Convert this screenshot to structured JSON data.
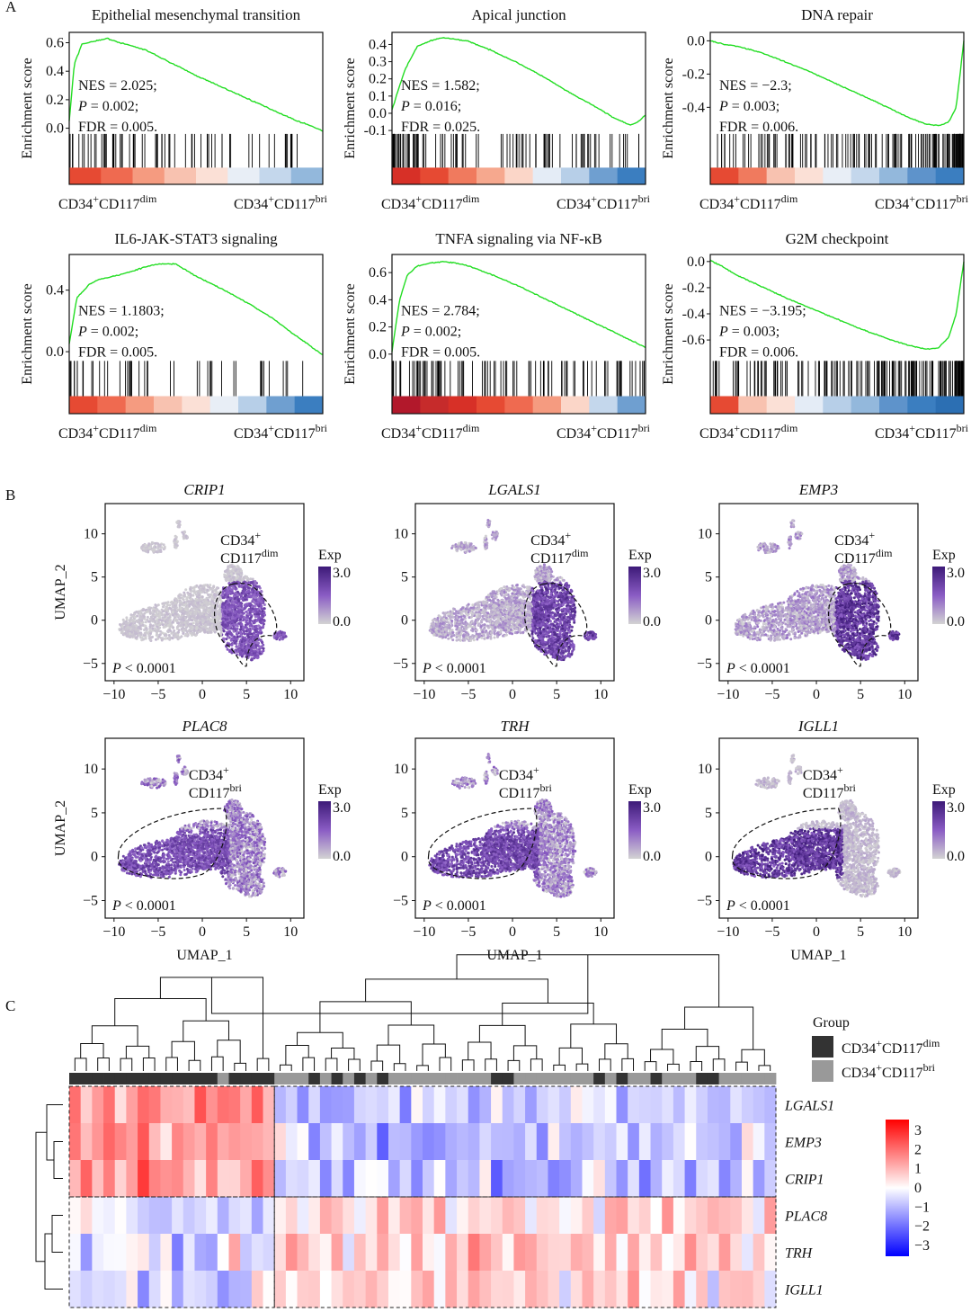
{
  "panel_labels": [
    "A",
    "B",
    "C"
  ],
  "chart_data": [
    {
      "panel": "A",
      "type": "line",
      "ylabel": "Enrichment score",
      "plots": [
        {
          "title": "Epithelial mesenchymal transition",
          "yticks": [
            "0.0",
            "0.2",
            "0.4",
            "0.6"
          ],
          "ylim": [
            -0.04,
            0.66
          ],
          "curve": [
            [
              0,
              0.05
            ],
            [
              0.02,
              0.45
            ],
            [
              0.05,
              0.59
            ],
            [
              0.1,
              0.61
            ],
            [
              0.15,
              0.63
            ],
            [
              0.2,
              0.6
            ],
            [
              0.3,
              0.55
            ],
            [
              0.4,
              0.46
            ],
            [
              0.5,
              0.37
            ],
            [
              0.6,
              0.29
            ],
            [
              0.7,
              0.21
            ],
            [
              0.8,
              0.13
            ],
            [
              0.9,
              0.05
            ],
            [
              0.95,
              0.02
            ],
            [
              1.0,
              -0.02
            ]
          ],
          "stats": {
            "nes": "NES = 2.025;",
            "p": "= 0.002;",
            "fdr": "FDR = 0.005."
          },
          "ranking_colors": [
            "#e64a33",
            "#ef6a50",
            "#f59b80",
            "#f8c2b0",
            "#fbe0d6",
            "#e8eef6",
            "#c4d7ec",
            "#93b8dc"
          ],
          "hits": 70
        },
        {
          "title": "Apical junction",
          "yticks": [
            "-0.1",
            "0.0",
            "0.1",
            "0.2",
            "0.3",
            "0.4"
          ],
          "ylim": [
            -0.12,
            0.46
          ],
          "curve": [
            [
              0,
              0.02
            ],
            [
              0.05,
              0.25
            ],
            [
              0.1,
              0.39
            ],
            [
              0.15,
              0.42
            ],
            [
              0.2,
              0.44
            ],
            [
              0.25,
              0.43
            ],
            [
              0.3,
              0.42
            ],
            [
              0.4,
              0.36
            ],
            [
              0.5,
              0.29
            ],
            [
              0.6,
              0.21
            ],
            [
              0.7,
              0.12
            ],
            [
              0.8,
              0.04
            ],
            [
              0.88,
              -0.03
            ],
            [
              0.94,
              -0.07
            ],
            [
              0.97,
              -0.05
            ],
            [
              1.0,
              -0.01
            ]
          ],
          "stats": {
            "nes": "NES = 1.582;",
            "p": "= 0.016;",
            "fdr": "FDR = 0.025."
          },
          "ranking_colors": [
            "#d73027",
            "#e64a33",
            "#f07a5e",
            "#f6a88e",
            "#fbd6c8",
            "#e4ecf6",
            "#b7cfe8",
            "#6f9fd0",
            "#3b7ec0"
          ],
          "hits": 90
        },
        {
          "title": "DNA repair",
          "yticks": [
            "0.0",
            "-0.2",
            "-0.4"
          ],
          "ylim": [
            -0.56,
            0.04
          ],
          "curve": [
            [
              0,
              0.0
            ],
            [
              0.05,
              -0.02
            ],
            [
              0.1,
              -0.03
            ],
            [
              0.2,
              -0.07
            ],
            [
              0.3,
              -0.13
            ],
            [
              0.4,
              -0.19
            ],
            [
              0.5,
              -0.26
            ],
            [
              0.6,
              -0.33
            ],
            [
              0.7,
              -0.4
            ],
            [
              0.78,
              -0.46
            ],
            [
              0.85,
              -0.5
            ],
            [
              0.9,
              -0.51
            ],
            [
              0.94,
              -0.49
            ],
            [
              0.97,
              -0.4
            ],
            [
              1.0,
              0.0
            ]
          ],
          "stats": {
            "nes": "NES = −2.3;",
            "p": "= 0.003;",
            "fdr": "FDR = 0.006."
          },
          "ranking_colors": [
            "#e64a33",
            "#f07a5e",
            "#f8c2b0",
            "#fbe0d6",
            "#e8eef6",
            "#c4d7ec",
            "#93b8dc",
            "#5e93cb",
            "#3b7ec0"
          ],
          "hits": 150
        },
        {
          "title": "IL6-JAK-STAT3 signaling",
          "yticks": [
            "0.0",
            "0.4"
          ],
          "ylim": [
            -0.06,
            0.62
          ],
          "curve": [
            [
              0,
              0.05
            ],
            [
              0.03,
              0.35
            ],
            [
              0.08,
              0.44
            ],
            [
              0.12,
              0.47
            ],
            [
              0.2,
              0.5
            ],
            [
              0.3,
              0.55
            ],
            [
              0.35,
              0.57
            ],
            [
              0.42,
              0.57
            ],
            [
              0.5,
              0.49
            ],
            [
              0.6,
              0.41
            ],
            [
              0.7,
              0.32
            ],
            [
              0.8,
              0.22
            ],
            [
              0.88,
              0.12
            ],
            [
              0.94,
              0.05
            ],
            [
              1.0,
              -0.02
            ]
          ],
          "stats": {
            "nes": "NES = 1.1803;",
            "p": "= 0.002;",
            "fdr": "FDR = 0.005."
          },
          "ranking_colors": [
            "#e64a33",
            "#ef6a50",
            "#f59b80",
            "#f8c2b0",
            "#fbe0d6",
            "#e8eef6",
            "#b7cfe8",
            "#6f9fd0",
            "#3b7ec0"
          ],
          "hits": 45
        },
        {
          "title": "TNFA signaling via NF-κB",
          "yticks": [
            "0.0",
            "0.2",
            "0.4",
            "0.6"
          ],
          "ylim": [
            -0.05,
            0.72
          ],
          "curve": [
            [
              0,
              0.02
            ],
            [
              0.03,
              0.4
            ],
            [
              0.06,
              0.58
            ],
            [
              0.1,
              0.65
            ],
            [
              0.15,
              0.67
            ],
            [
              0.2,
              0.68
            ],
            [
              0.25,
              0.67
            ],
            [
              0.3,
              0.65
            ],
            [
              0.4,
              0.58
            ],
            [
              0.5,
              0.5
            ],
            [
              0.6,
              0.41
            ],
            [
              0.7,
              0.32
            ],
            [
              0.8,
              0.23
            ],
            [
              0.9,
              0.14
            ],
            [
              1.0,
              0.05
            ]
          ],
          "stats": {
            "nes": "NES = 2.784;",
            "p": "= 0.002;",
            "fdr": "FDR = 0.005."
          },
          "ranking_colors": [
            "#b2182b",
            "#c62b2b",
            "#d73027",
            "#e64a33",
            "#ef6a50",
            "#f59b80",
            "#fbd6c8",
            "#c4d7ec",
            "#6f9fd0"
          ],
          "hits": 95
        },
        {
          "title": "G2M checkpoint",
          "yticks": [
            "0.0",
            "-0.2",
            "-0.4",
            "-0.6"
          ],
          "ylim": [
            -0.76,
            0.04
          ],
          "curve": [
            [
              0,
              0.01
            ],
            [
              0.05,
              -0.04
            ],
            [
              0.1,
              -0.1
            ],
            [
              0.2,
              -0.19
            ],
            [
              0.3,
              -0.28
            ],
            [
              0.4,
              -0.36
            ],
            [
              0.5,
              -0.44
            ],
            [
              0.6,
              -0.52
            ],
            [
              0.7,
              -0.59
            ],
            [
              0.78,
              -0.64
            ],
            [
              0.85,
              -0.67
            ],
            [
              0.9,
              -0.66
            ],
            [
              0.94,
              -0.58
            ],
            [
              0.97,
              -0.4
            ],
            [
              1.0,
              0.0
            ]
          ],
          "stats": {
            "nes": "NES = −3.195;",
            "p": "= 0.003;",
            "fdr": "FDR = 0.006."
          },
          "ranking_colors": [
            "#e64a33",
            "#f8c2b0",
            "#fbe0d6",
            "#e4ecf6",
            "#b7cfe8",
            "#93b8dc",
            "#5e93cb",
            "#3b7ec0",
            "#2c6fb3"
          ],
          "hits": 170
        }
      ],
      "x_left": {
        "base": "CD34",
        "sup1": "+",
        "mid": "CD117",
        "sup2": "dim"
      },
      "x_right": {
        "base": "CD34",
        "sup1": "+",
        "mid": "CD117",
        "sup2": "bri"
      }
    },
    {
      "panel": "B",
      "type": "scatter",
      "xlabel": "UMAP_1",
      "ylabel": "UMAP_2",
      "xticks": [
        "−10",
        "−5",
        "0",
        "5",
        "10"
      ],
      "yticks": [
        "−5",
        "0",
        "5",
        "10"
      ],
      "xlim": [
        -11,
        11.5
      ],
      "ylim": [
        -7,
        13.5
      ],
      "legend_title": "Exp",
      "legend_ticks": [
        "3.0",
        "0.0"
      ],
      "pvalue": "< 0.0001",
      "plots": [
        {
          "gene": "CRIP1",
          "group": "dim",
          "intensity": 0.75,
          "bg": 0.08
        },
        {
          "gene": "LGALS1",
          "group": "dim",
          "intensity": 0.9,
          "bg": 0.25
        },
        {
          "gene": "EMP3",
          "group": "dim",
          "intensity": 1.0,
          "bg": 0.3
        },
        {
          "gene": "PLAC8",
          "group": "bri",
          "intensity": 0.8,
          "bg": 0.45
        },
        {
          "gene": "TRH",
          "group": "bri",
          "intensity": 0.85,
          "bg": 0.4
        },
        {
          "gene": "IGLL1",
          "group": "bri",
          "intensity": 1.0,
          "bg": 0.15
        }
      ],
      "label_dim": {
        "l1": "CD34",
        "s1": "+",
        "l2": "CD117",
        "s2": "dim"
      },
      "label_bri": {
        "l1": "CD34",
        "s1": "+",
        "l2": "CD117",
        "s2": "bri"
      }
    },
    {
      "panel": "C",
      "type": "heatmap",
      "rows": [
        "LGALS1",
        "EMP3",
        "CRIP1",
        "PLAC8",
        "TRH",
        "IGLL1"
      ],
      "n_columns": 62,
      "group_boundary_column": 18,
      "colorbar_ticks": [
        "3",
        "2",
        "1",
        "0",
        "−1",
        "−2",
        "−3"
      ],
      "legend_title": "Group",
      "legend_items": [
        {
          "base": "CD34",
          "sup1": "+",
          "mid": "CD117",
          "sup2": "dim",
          "color": "#333333"
        },
        {
          "base": "CD34",
          "sup1": "+",
          "mid": "CD117",
          "sup2": "bri",
          "color": "#999999"
        }
      ]
    }
  ],
  "colors": {
    "curve": "#22dd22",
    "exp_high": "#3d1a78",
    "exp_mid": "#8a5cc4",
    "exp_low": "#d3d3d3",
    "heat_high": "#ff0000",
    "heat_mid": "#ffffff",
    "heat_low": "#0000ff"
  }
}
